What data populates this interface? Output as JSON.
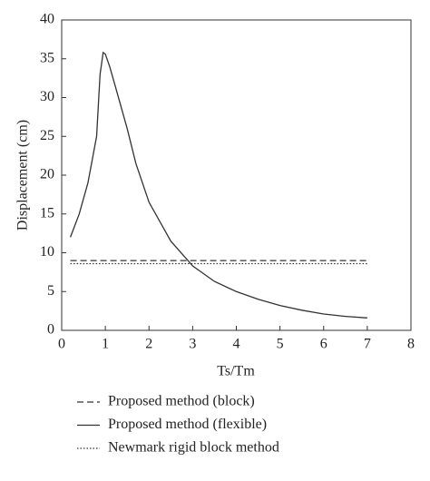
{
  "chart_data": {
    "type": "line",
    "xlabel": "Ts/Tm",
    "ylabel": "Displacement (cm)",
    "xlim": [
      0,
      8
    ],
    "xticks": [
      0,
      1,
      2,
      3,
      4,
      5,
      6,
      7,
      8
    ],
    "ylim": [
      0,
      40
    ],
    "yticks": [
      0,
      5,
      10,
      15,
      20,
      25,
      30,
      35,
      40
    ],
    "series": [
      {
        "name": "Proposed method (block)",
        "color": "#333333",
        "style": "dashed",
        "x": [
          0.2,
          7.0
        ],
        "values": [
          9.0,
          9.0
        ]
      },
      {
        "name": "Proposed method (flexible)",
        "color": "#333333",
        "style": "solid",
        "x": [
          0.2,
          0.4,
          0.6,
          0.8,
          0.88,
          0.95,
          1.0,
          1.1,
          1.2,
          1.5,
          1.7,
          2.0,
          2.5,
          3.0,
          3.5,
          4.0,
          4.5,
          5.0,
          5.5,
          6.0,
          6.5,
          7.0
        ],
        "values": [
          12.0,
          15.0,
          19.0,
          25.0,
          33.0,
          35.8,
          35.6,
          34.0,
          32.0,
          26.0,
          21.5,
          16.5,
          11.5,
          8.3,
          6.3,
          5.0,
          4.0,
          3.2,
          2.6,
          2.1,
          1.8,
          1.6
        ]
      },
      {
        "name": "Newmark rigid block method",
        "color": "#333333",
        "style": "dotted",
        "x": [
          0.2,
          7.0
        ],
        "values": [
          8.6,
          8.6
        ]
      }
    ]
  }
}
